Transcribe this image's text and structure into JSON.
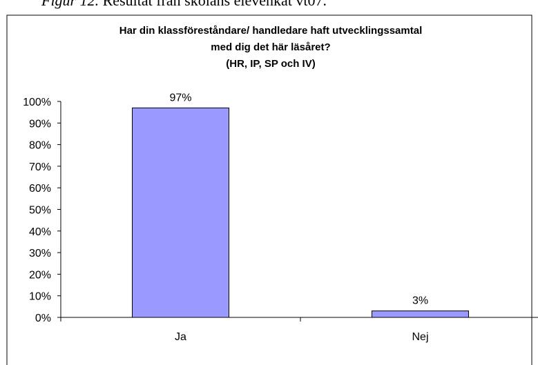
{
  "caption": {
    "label": "Figur 12.",
    "text": "Resultat från skolans elevenkät vt07."
  },
  "chart_data": {
    "type": "bar",
    "title": [
      "Har din klassföreståndare/ handledare haft utvecklingssamtal",
      "med dig det här läsåret?",
      "(HR, IP, SP och IV)"
    ],
    "categories": [
      "Ja",
      "Nej"
    ],
    "values": [
      97,
      3
    ],
    "value_labels": [
      "97%",
      "3%"
    ],
    "color": "#9999ff",
    "ylim": [
      0,
      100
    ],
    "yticks": [
      {
        "value": 0,
        "label": "0%"
      },
      {
        "value": 10,
        "label": "10%"
      },
      {
        "value": 20,
        "label": "20%"
      },
      {
        "value": 30,
        "label": "30%"
      },
      {
        "value": 40,
        "label": "40%"
      },
      {
        "value": 50,
        "label": "50%"
      },
      {
        "value": 60,
        "label": "60%"
      },
      {
        "value": 70,
        "label": "70%"
      },
      {
        "value": 80,
        "label": "80%"
      },
      {
        "value": 90,
        "label": "90%"
      },
      {
        "value": 100,
        "label": "100%"
      }
    ],
    "grid": false
  }
}
